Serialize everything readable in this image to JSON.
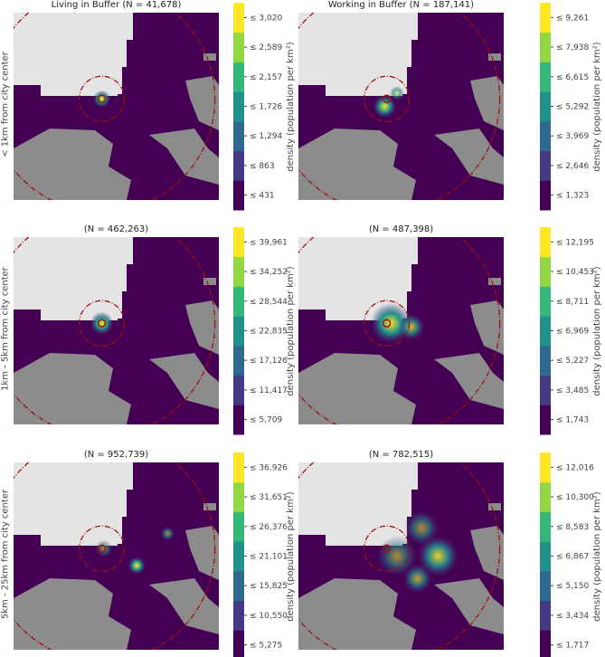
{
  "chart_data": {
    "type": "heatmap",
    "row_labels": [
      "< 1km from city center",
      "1km - 5km from city center",
      "5km - 25km from city center"
    ],
    "colorbar_label": "density (population per km²)",
    "colors": [
      "#440154",
      "#443983",
      "#31688e",
      "#21918c",
      "#35b779",
      "#90d743",
      "#fde725"
    ],
    "panels": [
      {
        "title": "Living in Buffer (N = 41,678)",
        "ticks": [
          "≤ 431",
          "≤ 863",
          "≤ 1,294",
          "≤ 1,726",
          "≤ 2,157",
          "≤ 2,589",
          "≤ 3,020"
        ]
      },
      {
        "title": "Working in Buffer (N = 187,141)",
        "ticks": [
          "≤ 1,323",
          "≤ 2,646",
          "≤ 3,969",
          "≤ 5,292",
          "≤ 6,615",
          "≤ 7,938",
          "≤ 9,261"
        ]
      },
      {
        "title": "(N = 462,263)",
        "ticks": [
          "≤ 5,709",
          "≤ 11,417",
          "≤ 17,126",
          "≤ 22,835",
          "≤ 28,544",
          "≤ 34,252",
          "≤ 39,961"
        ]
      },
      {
        "title": "(N = 487,398)",
        "ticks": [
          "≤ 1,743",
          "≤ 3,485",
          "≤ 5,227",
          "≤ 6,969",
          "≤ 8,711",
          "≤ 10,453",
          "≤ 12,195"
        ]
      },
      {
        "title": "(N = 952,739)",
        "ticks": [
          "≤ 5,275",
          "≤ 10,550",
          "≤ 15,825",
          "≤ 21,101",
          "≤ 26,376",
          "≤ 31,651",
          "≤ 36,926"
        ]
      },
      {
        "title": "(N = 782,515)",
        "ticks": [
          "≤ 1,717",
          "≤ 3,434",
          "≤ 5,150",
          "≤ 6,867",
          "≤ 8,583",
          "≤ 10,300",
          "≤ 12,016"
        ]
      }
    ]
  }
}
